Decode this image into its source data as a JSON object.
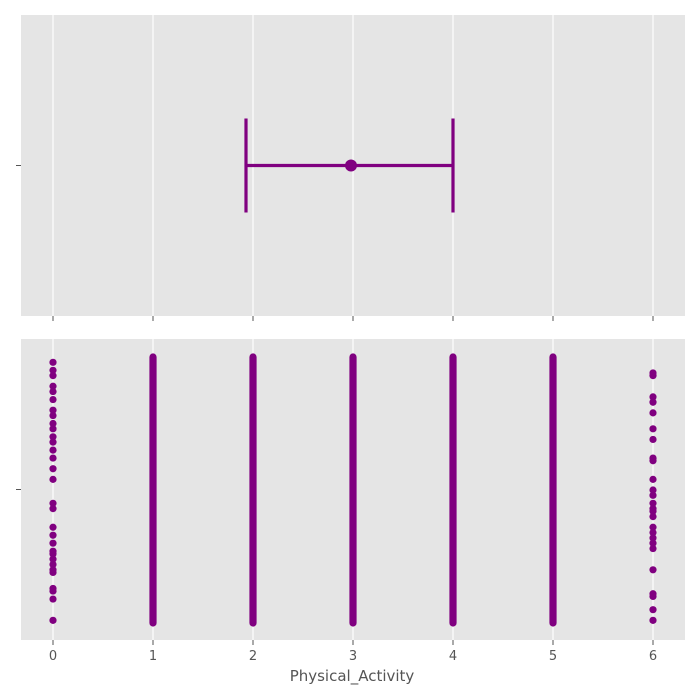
{
  "chart_data": [
    {
      "type": "errorbar",
      "panel": "top",
      "point": {
        "x": 2.98,
        "low": 1.93,
        "high": 4.0
      },
      "color": "#800080",
      "xlim": [
        -0.32,
        6.32
      ],
      "xticks": [
        0,
        1,
        2,
        3,
        4,
        5,
        6
      ],
      "grid": true
    },
    {
      "type": "scatter",
      "panel": "bottom",
      "xlabel": "Physical_Activity",
      "color": "#800080",
      "xlim": [
        -0.32,
        6.32
      ],
      "xticks": [
        0,
        1,
        2,
        3,
        4,
        5,
        6
      ],
      "xtick_labels": [
        "0",
        "1",
        "2",
        "3",
        "4",
        "5",
        "6"
      ],
      "grid": true,
      "columns": [
        {
          "x": 0,
          "dense": false,
          "y": [
            0.98,
            0.95,
            0.93,
            0.89,
            0.87,
            0.84,
            0.8,
            0.78,
            0.75,
            0.73,
            0.7,
            0.68,
            0.65,
            0.62,
            0.58,
            0.54,
            0.45,
            0.43,
            0.36,
            0.33,
            0.3,
            0.27,
            0.26,
            0.24,
            0.22,
            0.2,
            0.19,
            0.13,
            0.12,
            0.09,
            0.01
          ]
        },
        {
          "x": 1,
          "dense": true,
          "y_range": [
            0.0,
            1.0
          ]
        },
        {
          "x": 2,
          "dense": true,
          "y_range": [
            0.0,
            1.0
          ]
        },
        {
          "x": 3,
          "dense": true,
          "y_range": [
            0.0,
            1.0
          ]
        },
        {
          "x": 4,
          "dense": true,
          "y_range": [
            0.0,
            1.0
          ]
        },
        {
          "x": 5,
          "dense": true,
          "y_range": [
            0.0,
            1.0
          ]
        },
        {
          "x": 6,
          "dense": false,
          "y": [
            0.94,
            0.93,
            0.85,
            0.83,
            0.79,
            0.73,
            0.69,
            0.62,
            0.61,
            0.54,
            0.5,
            0.48,
            0.45,
            0.43,
            0.42,
            0.4,
            0.36,
            0.34,
            0.32,
            0.3,
            0.28,
            0.2,
            0.11,
            0.1,
            0.05,
            0.01
          ]
        }
      ]
    }
  ]
}
